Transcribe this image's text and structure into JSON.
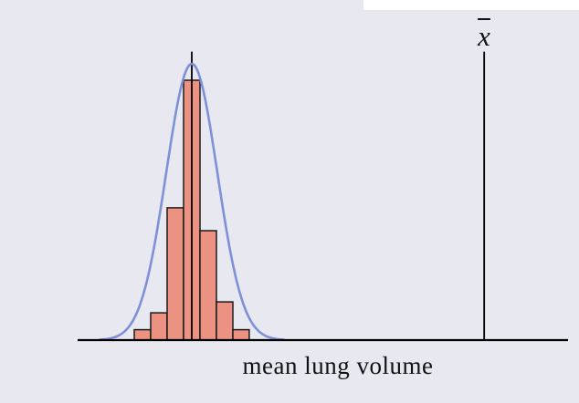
{
  "figure": {
    "background_color": "#e8e8f1",
    "has_white_strip_top_right": true
  },
  "chart_data": {
    "type": "bar",
    "subtype": "histogram-with-normal-curve",
    "title": "",
    "xlabel": "mean lung volume",
    "ylabel": "",
    "x_axis": {
      "range": [
        0,
        1
      ],
      "tick_labels": "none",
      "grid": "off"
    },
    "y_axis": {
      "visible": false
    },
    "histogram": {
      "bin_edges": [
        0.1155,
        0.149,
        0.1825,
        0.216,
        0.2495,
        0.283,
        0.3166,
        0.35
      ],
      "heights": [
        0.04,
        0.105,
        0.509,
        1.0,
        0.421,
        0.147,
        0.04
      ],
      "fill_color": "#ec9283",
      "edge_color": "#1a1a1a"
    },
    "normal_curve": {
      "mean": 0.2328,
      "sd": 0.0521,
      "peak_height": 1.063,
      "color": "#7e90d6",
      "stroke_width": 2.6,
      "extent_sd": 3.6
    },
    "histogram_mean_line": {
      "x": 0.2328,
      "top": 1.11,
      "color": "#000000"
    },
    "xbar_line": {
      "x": 0.829,
      "top": 1.11,
      "color": "#000000",
      "label": "x̄",
      "label_base": "x"
    },
    "axis_color": "#000000"
  }
}
